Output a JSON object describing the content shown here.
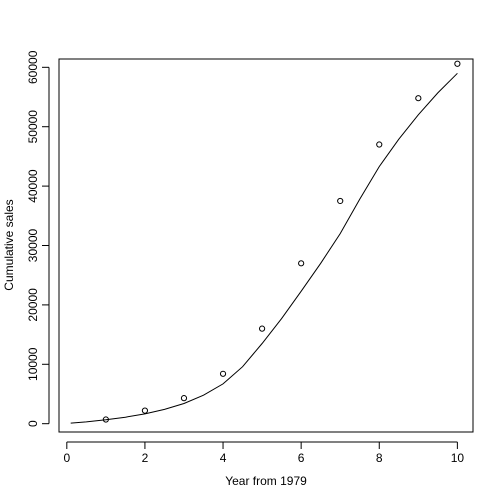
{
  "chart_data": {
    "type": "scatter",
    "title": "",
    "xlabel": "Year from 1979",
    "ylabel": "Cumulative sales",
    "xlim": [
      -0.2,
      10.4
    ],
    "ylim": [
      -1400,
      61400
    ],
    "x_ticks": [
      0,
      2,
      4,
      6,
      8,
      10
    ],
    "y_ticks": [
      0,
      10000,
      20000,
      30000,
      40000,
      50000,
      60000
    ],
    "x_tick_labels": [
      "0",
      "2",
      "4",
      "6",
      "8",
      "10"
    ],
    "y_tick_labels": [
      "0",
      "10000",
      "20000",
      "30000",
      "40000",
      "50000",
      "60000"
    ],
    "grid": false,
    "series": [
      {
        "kind": "points",
        "marker": "open-circle",
        "x": [
          1,
          2,
          3,
          4,
          5,
          6,
          7,
          8,
          9,
          10
        ],
        "y": [
          700,
          2200,
          4300,
          8400,
          16000,
          27000,
          37500,
          47000,
          54800,
          60600
        ]
      },
      {
        "kind": "line",
        "x": [
          0.1,
          0.5,
          1,
          1.5,
          2,
          2.5,
          3,
          3.5,
          4,
          4.5,
          5,
          5.5,
          6,
          6.5,
          7,
          7.5,
          8,
          8.5,
          9,
          9.5,
          10
        ],
        "y": [
          100,
          300,
          650,
          1100,
          1650,
          2400,
          3400,
          4800,
          6700,
          9600,
          13500,
          17700,
          22300,
          27000,
          32000,
          37800,
          43300,
          47900,
          52000,
          55700,
          59000
        ]
      }
    ]
  }
}
